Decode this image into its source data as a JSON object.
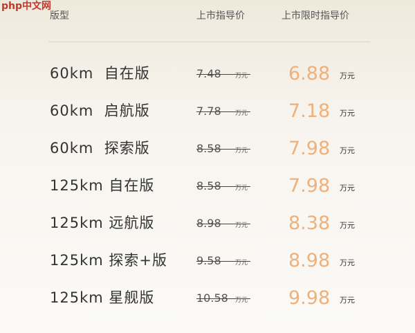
{
  "watermark": "php中文网",
  "table": {
    "header": [
      "版型",
      "上市指导价",
      "上市限时指导价"
    ],
    "rows": [
      [
        "60km  自在版",
        "7.48",
        "万元",
        "6.88",
        "万元"
      ],
      [
        "60km  启航版",
        "7.78",
        "万元",
        "7.18",
        "万元"
      ],
      [
        "60km  探索版",
        "8.58",
        "万元",
        "7.98",
        "万元"
      ],
      [
        "125km 自在版",
        "8.58",
        "万元",
        "7.98",
        "万元"
      ],
      [
        "125km 远航版",
        "8.98",
        "万元",
        "8.38",
        "万元"
      ],
      [
        "125km 探索+版",
        "9.58",
        "万元",
        "8.98",
        "万元"
      ],
      [
        "125km 星舰版",
        "10.58",
        "万元",
        "9.98",
        "万元"
      ]
    ]
  }
}
